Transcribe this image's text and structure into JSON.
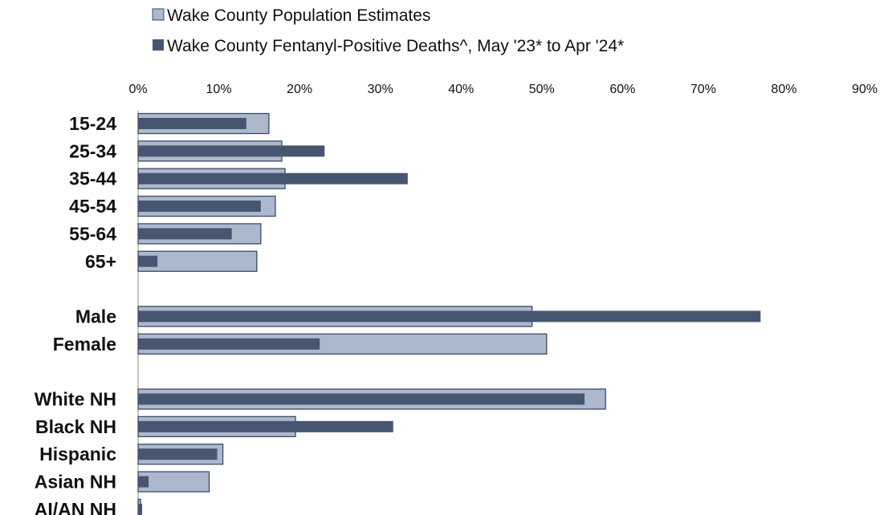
{
  "colors": {
    "population": "#acb8cc",
    "population_stroke": "#3e4b66",
    "deaths": "#475670",
    "axis": "#8c8c8c"
  },
  "legend": {
    "population": "Wake County Population Estimates",
    "deaths": "Wake County Fentanyl-Positive Deaths^, May '23* to Apr '24*"
  },
  "chart_data": {
    "type": "bar",
    "orientation": "horizontal",
    "xlim": [
      0,
      90
    ],
    "x_ticks": [
      "0%",
      "10%",
      "20%",
      "30%",
      "40%",
      "50%",
      "60%",
      "70%",
      "80%",
      "90%"
    ],
    "x_axis_position": "top",
    "legend_position": "top",
    "grid": false,
    "groups": [
      [
        "15-24",
        "25-34",
        "35-44",
        "45-54",
        "55-64",
        "65+"
      ],
      [
        "Male",
        "Female"
      ],
      [
        "White NH",
        "Black NH",
        "Hispanic",
        "Asian NH",
        "AI/AN NH"
      ]
    ],
    "categories": [
      "15-24",
      "25-34",
      "35-44",
      "45-54",
      "55-64",
      "65+",
      "Male",
      "Female",
      "White NH",
      "Black NH",
      "Hispanic",
      "Asian NH",
      "AI/AN NH"
    ],
    "series": [
      {
        "name": "Wake County Population Estimates",
        "values": [
          16.2,
          17.8,
          18.2,
          17.0,
          15.2,
          14.7,
          48.8,
          50.6,
          57.9,
          19.5,
          10.5,
          8.8,
          0.3
        ]
      },
      {
        "name": "Wake County Fentanyl-Positive Deaths^, May '23* to Apr '24*",
        "values": [
          13.4,
          23.1,
          33.4,
          15.2,
          11.6,
          2.4,
          77.1,
          22.5,
          55.3,
          31.6,
          9.8,
          1.3,
          0.5
        ]
      }
    ]
  }
}
